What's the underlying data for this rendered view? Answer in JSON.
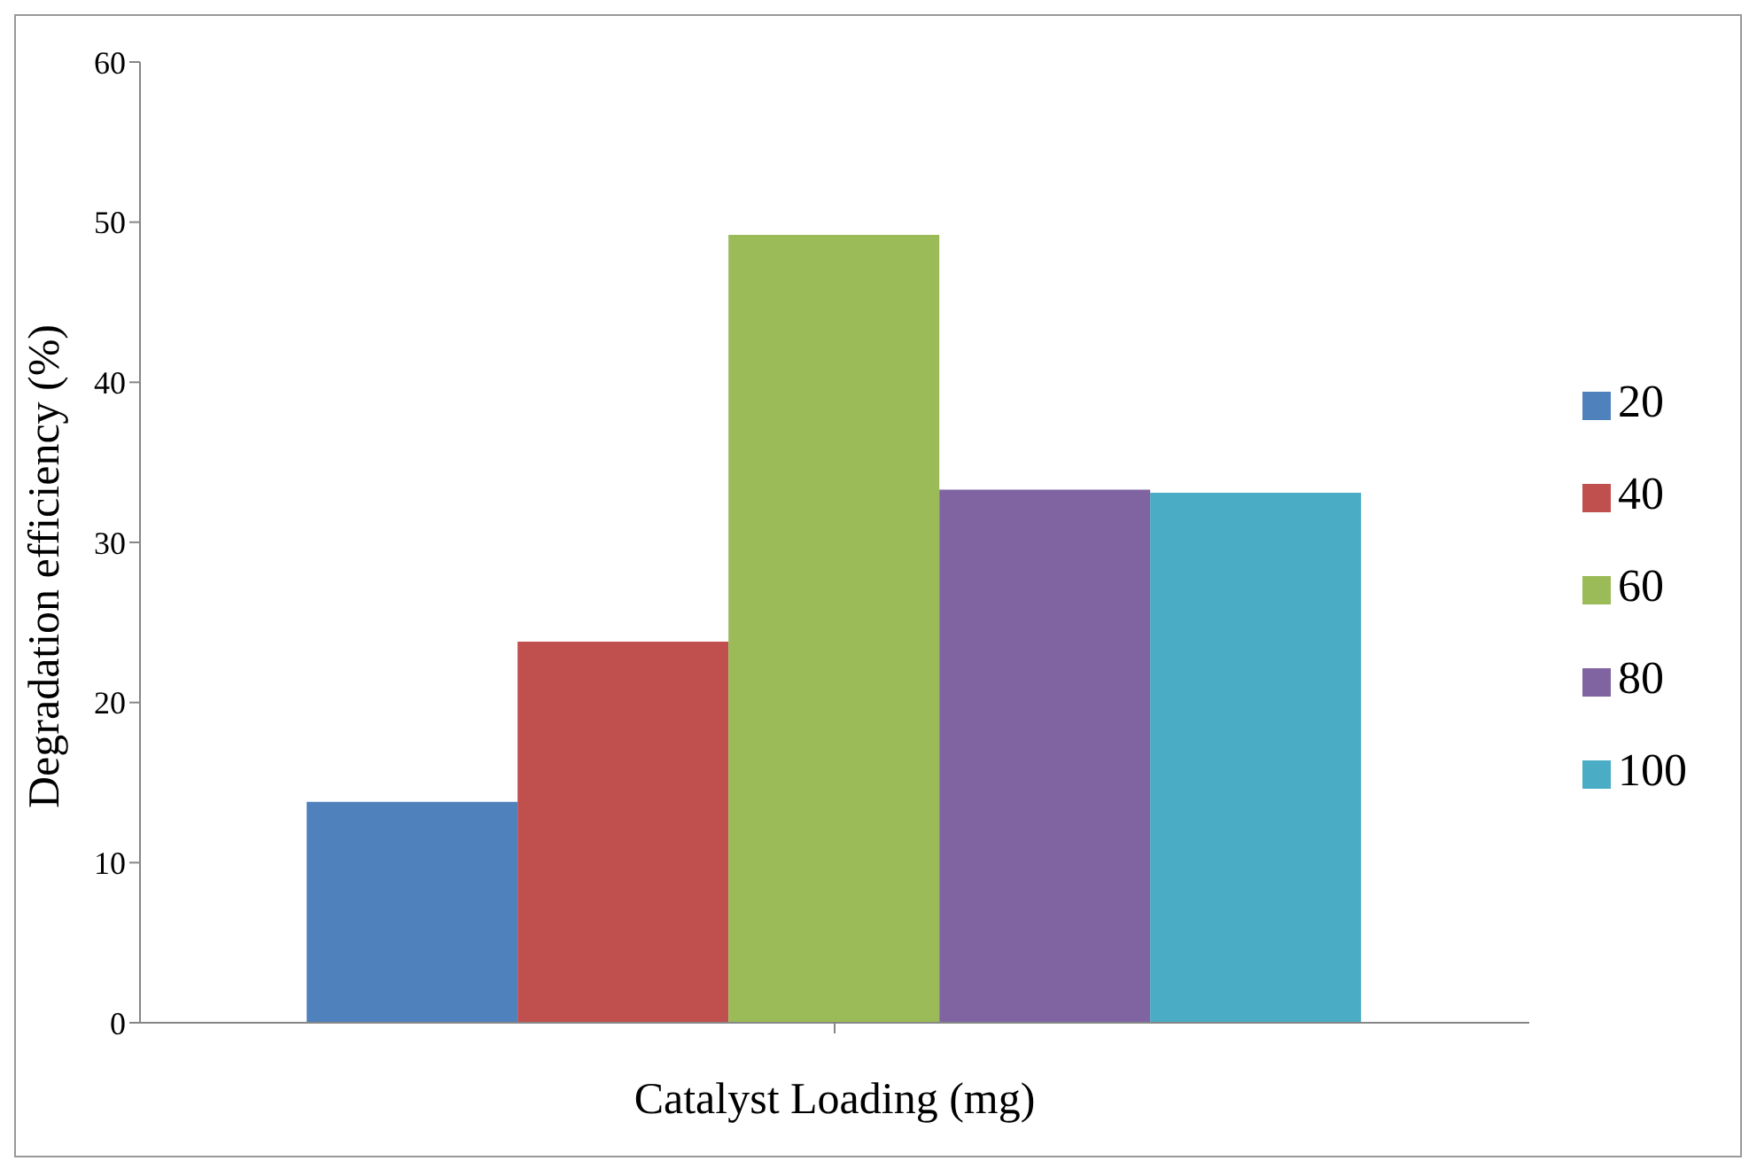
{
  "chart_data": {
    "type": "bar",
    "xlabel": "Catalyst Loading (mg)",
    "ylabel": "Degradation efficiency (%)",
    "categories": [
      null
    ],
    "series": [
      {
        "name": "20",
        "color": "#4f81bd",
        "values": [
          13.8
        ]
      },
      {
        "name": "40",
        "color": "#c0504d",
        "values": [
          23.8
        ]
      },
      {
        "name": "60",
        "color": "#9bbb59",
        "values": [
          49.2
        ]
      },
      {
        "name": "80",
        "color": "#8064a2",
        "values": [
          33.3
        ]
      },
      {
        "name": "100",
        "color": "#4bacc6",
        "values": [
          33.1
        ]
      }
    ],
    "ylim": [
      0,
      60
    ],
    "yticks": [
      0,
      10,
      20,
      30,
      40,
      50,
      60
    ],
    "grid": false,
    "legend": "right"
  }
}
